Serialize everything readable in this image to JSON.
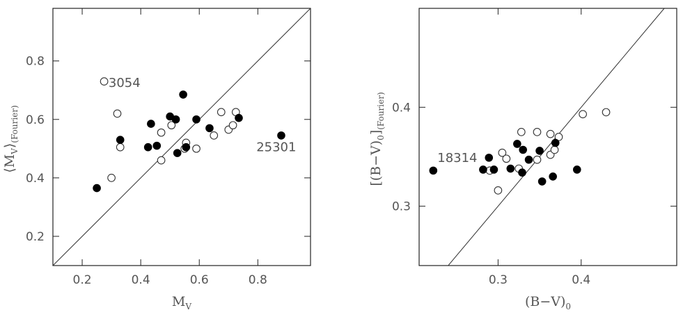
{
  "chart_data": [
    {
      "type": "scatter",
      "title": "",
      "xlabel": "M",
      "xlabel_sub": "V",
      "ylabel": "⟨M",
      "ylabel_sub": "V",
      "ylabel_tail": "⟩",
      "ylabel_sub2": "(Fourier)",
      "xlim": [
        0.1,
        0.98
      ],
      "ylim": [
        0.1,
        0.98
      ],
      "xticks": [
        0.2,
        0.4,
        0.6,
        0.8
      ],
      "xtick_labels": [
        "0.2",
        "0.4",
        "0.6",
        "0.8"
      ],
      "yticks": [
        0.2,
        0.4,
        0.6,
        0.8
      ],
      "ytick_labels": [
        "0.2",
        "0.4",
        "0.6",
        "0.8"
      ],
      "identity_line": true,
      "series": [
        {
          "marker": "open",
          "points": [
            [
              0.275,
              0.73
            ],
            [
              0.32,
              0.62
            ],
            [
              0.33,
              0.505
            ],
            [
              0.3,
              0.4
            ],
            [
              0.47,
              0.555
            ],
            [
              0.47,
              0.46
            ],
            [
              0.505,
              0.58
            ],
            [
              0.555,
              0.52
            ],
            [
              0.55,
              0.5
            ],
            [
              0.59,
              0.5
            ],
            [
              0.65,
              0.545
            ],
            [
              0.675,
              0.625
            ],
            [
              0.7,
              0.565
            ],
            [
              0.715,
              0.58
            ],
            [
              0.725,
              0.625
            ]
          ]
        },
        {
          "marker": "filled",
          "points": [
            [
              0.25,
              0.365
            ],
            [
              0.33,
              0.53
            ],
            [
              0.425,
              0.505
            ],
            [
              0.435,
              0.585
            ],
            [
              0.455,
              0.51
            ],
            [
              0.5,
              0.61
            ],
            [
              0.52,
              0.6
            ],
            [
              0.525,
              0.485
            ],
            [
              0.545,
              0.685
            ],
            [
              0.555,
              0.505
            ],
            [
              0.59,
              0.6
            ],
            [
              0.635,
              0.57
            ],
            [
              0.735,
              0.605
            ],
            [
              0.88,
              0.545
            ]
          ]
        }
      ],
      "annotations": [
        {
          "text": "3054",
          "x": 0.29,
          "y": 0.725
        },
        {
          "text": "25301",
          "x": 0.795,
          "y": 0.505
        }
      ]
    },
    {
      "type": "scatter",
      "title": "",
      "xlabel": "(B−V)",
      "xlabel_sub": "0",
      "ylabel": "[(B−V)",
      "ylabel_sub": "0",
      "ylabel_tail": "]",
      "ylabel_sub2": "(Fourier)",
      "xlim": [
        0.205,
        0.515
      ],
      "ylim": [
        0.24,
        0.5
      ],
      "xticks": [
        0.3,
        0.4
      ],
      "xtick_labels": [
        "0.3",
        "0.4"
      ],
      "yticks": [
        0.3,
        0.4
      ],
      "ytick_labels": [
        "0.3",
        "0.4"
      ],
      "identity_line": true,
      "series": [
        {
          "marker": "open",
          "points": [
            [
              0.29,
              0.336
            ],
            [
              0.3,
              0.316
            ],
            [
              0.305,
              0.354
            ],
            [
              0.31,
              0.348
            ],
            [
              0.325,
              0.338
            ],
            [
              0.328,
              0.375
            ],
            [
              0.347,
              0.375
            ],
            [
              0.347,
              0.347
            ],
            [
              0.363,
              0.373
            ],
            [
              0.363,
              0.352
            ],
            [
              0.368,
              0.357
            ],
            [
              0.373,
              0.37
            ],
            [
              0.402,
              0.393
            ],
            [
              0.43,
              0.395
            ]
          ]
        },
        {
          "marker": "filled",
          "points": [
            [
              0.222,
              0.336
            ],
            [
              0.282,
              0.337
            ],
            [
              0.289,
              0.349
            ],
            [
              0.295,
              0.337
            ],
            [
              0.315,
              0.338
            ],
            [
              0.323,
              0.363
            ],
            [
              0.329,
              0.334
            ],
            [
              0.33,
              0.357
            ],
            [
              0.337,
              0.347
            ],
            [
              0.35,
              0.356
            ],
            [
              0.353,
              0.325
            ],
            [
              0.366,
              0.33
            ],
            [
              0.369,
              0.364
            ],
            [
              0.395,
              0.337
            ]
          ]
        }
      ],
      "annotations": [
        {
          "text": "18314",
          "x": 0.227,
          "y": 0.349
        }
      ]
    }
  ]
}
